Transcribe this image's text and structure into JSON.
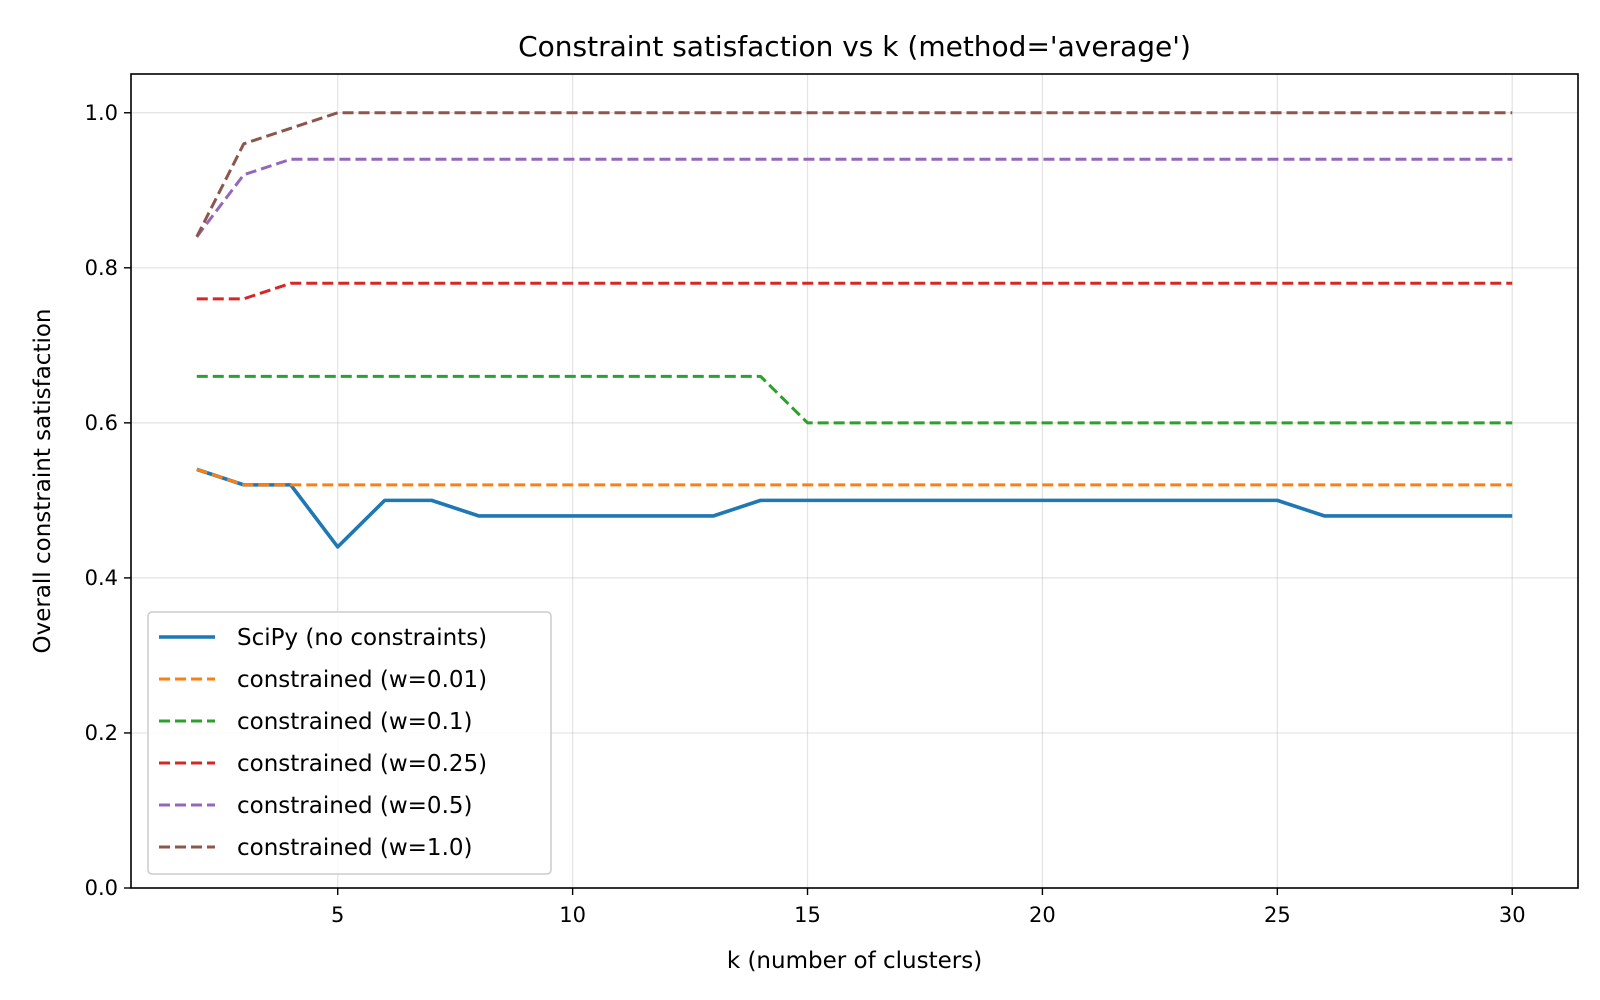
{
  "chart_data": {
    "type": "line",
    "title": "Constraint satisfaction vs k (method='average')",
    "xlabel": "k (number of clusters)",
    "ylabel": "Overall constraint satisfaction",
    "xlim": [
      0.6,
      31.4
    ],
    "ylim": [
      0.0,
      1.05
    ],
    "x_ticks": [
      5,
      10,
      15,
      20,
      25,
      30
    ],
    "y_ticks": [
      0.0,
      0.2,
      0.4,
      0.6,
      0.8,
      1.0
    ],
    "x_tick_labels": [
      "5",
      "10",
      "15",
      "20",
      "25",
      "30"
    ],
    "y_tick_labels": [
      "0.0",
      "0.2",
      "0.4",
      "0.6",
      "0.8",
      "1.0"
    ],
    "grid": true,
    "legend_position": "lower-left",
    "x": [
      2,
      3,
      4,
      5,
      6,
      7,
      8,
      9,
      10,
      11,
      12,
      13,
      14,
      15,
      16,
      17,
      18,
      19,
      20,
      21,
      22,
      23,
      24,
      25,
      26,
      27,
      28,
      29,
      30
    ],
    "series": [
      {
        "name": "SciPy (no constraints)",
        "color": "#1f77b4",
        "style": "solid",
        "values": [
          0.54,
          0.52,
          0.52,
          0.44,
          0.5,
          0.5,
          0.48,
          0.48,
          0.48,
          0.48,
          0.48,
          0.48,
          0.5,
          0.5,
          0.5,
          0.5,
          0.5,
          0.5,
          0.5,
          0.5,
          0.5,
          0.5,
          0.5,
          0.5,
          0.48,
          0.48,
          0.48,
          0.48,
          0.48
        ]
      },
      {
        "name": "constrained (w=0.01)",
        "color": "#ff7f0e",
        "style": "dashed",
        "values": [
          0.54,
          0.52,
          0.52,
          0.52,
          0.52,
          0.52,
          0.52,
          0.52,
          0.52,
          0.52,
          0.52,
          0.52,
          0.52,
          0.52,
          0.52,
          0.52,
          0.52,
          0.52,
          0.52,
          0.52,
          0.52,
          0.52,
          0.52,
          0.52,
          0.52,
          0.52,
          0.52,
          0.52,
          0.52
        ]
      },
      {
        "name": "constrained (w=0.1)",
        "color": "#2ca02c",
        "style": "dashed",
        "values": [
          0.66,
          0.66,
          0.66,
          0.66,
          0.66,
          0.66,
          0.66,
          0.66,
          0.66,
          0.66,
          0.66,
          0.66,
          0.66,
          0.6,
          0.6,
          0.6,
          0.6,
          0.6,
          0.6,
          0.6,
          0.6,
          0.6,
          0.6,
          0.6,
          0.6,
          0.6,
          0.6,
          0.6,
          0.6
        ]
      },
      {
        "name": "constrained (w=0.25)",
        "color": "#d62728",
        "style": "dashed",
        "values": [
          0.76,
          0.76,
          0.78,
          0.78,
          0.78,
          0.78,
          0.78,
          0.78,
          0.78,
          0.78,
          0.78,
          0.78,
          0.78,
          0.78,
          0.78,
          0.78,
          0.78,
          0.78,
          0.78,
          0.78,
          0.78,
          0.78,
          0.78,
          0.78,
          0.78,
          0.78,
          0.78,
          0.78,
          0.78
        ]
      },
      {
        "name": "constrained (w=0.5)",
        "color": "#9467bd",
        "style": "dashed",
        "values": [
          0.84,
          0.92,
          0.94,
          0.94,
          0.94,
          0.94,
          0.94,
          0.94,
          0.94,
          0.94,
          0.94,
          0.94,
          0.94,
          0.94,
          0.94,
          0.94,
          0.94,
          0.94,
          0.94,
          0.94,
          0.94,
          0.94,
          0.94,
          0.94,
          0.94,
          0.94,
          0.94,
          0.94,
          0.94
        ]
      },
      {
        "name": "constrained (w=1.0)",
        "color": "#8c564b",
        "style": "dashed",
        "values": [
          0.84,
          0.96,
          0.98,
          1.0,
          1.0,
          1.0,
          1.0,
          1.0,
          1.0,
          1.0,
          1.0,
          1.0,
          1.0,
          1.0,
          1.0,
          1.0,
          1.0,
          1.0,
          1.0,
          1.0,
          1.0,
          1.0,
          1.0,
          1.0,
          1.0,
          1.0,
          1.0,
          1.0,
          1.0
        ]
      }
    ]
  }
}
